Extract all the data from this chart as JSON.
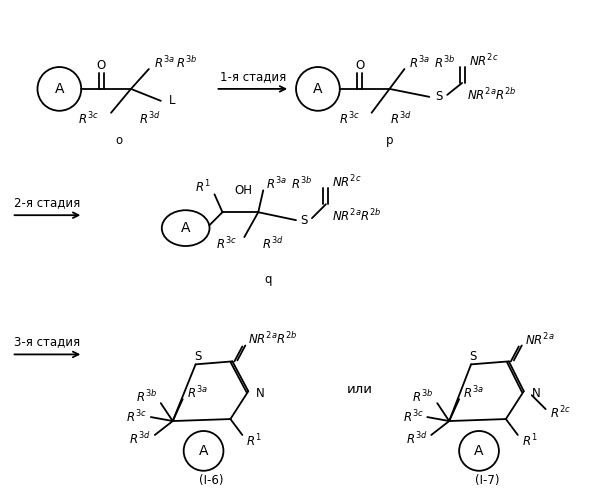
{
  "bg_color": "#ffffff",
  "fig_width": 6.06,
  "fig_height": 5.0,
  "dpi": 100,
  "font_size_main": 8.5,
  "stage1": "1-я стадия",
  "stage2": "2-я стадия",
  "stage3": "3-я стадия",
  "ili": "или",
  "label_o": "о",
  "label_p": "р",
  "label_q": "q",
  "label_i6": "(I-6)",
  "label_i7": "(I-7)"
}
